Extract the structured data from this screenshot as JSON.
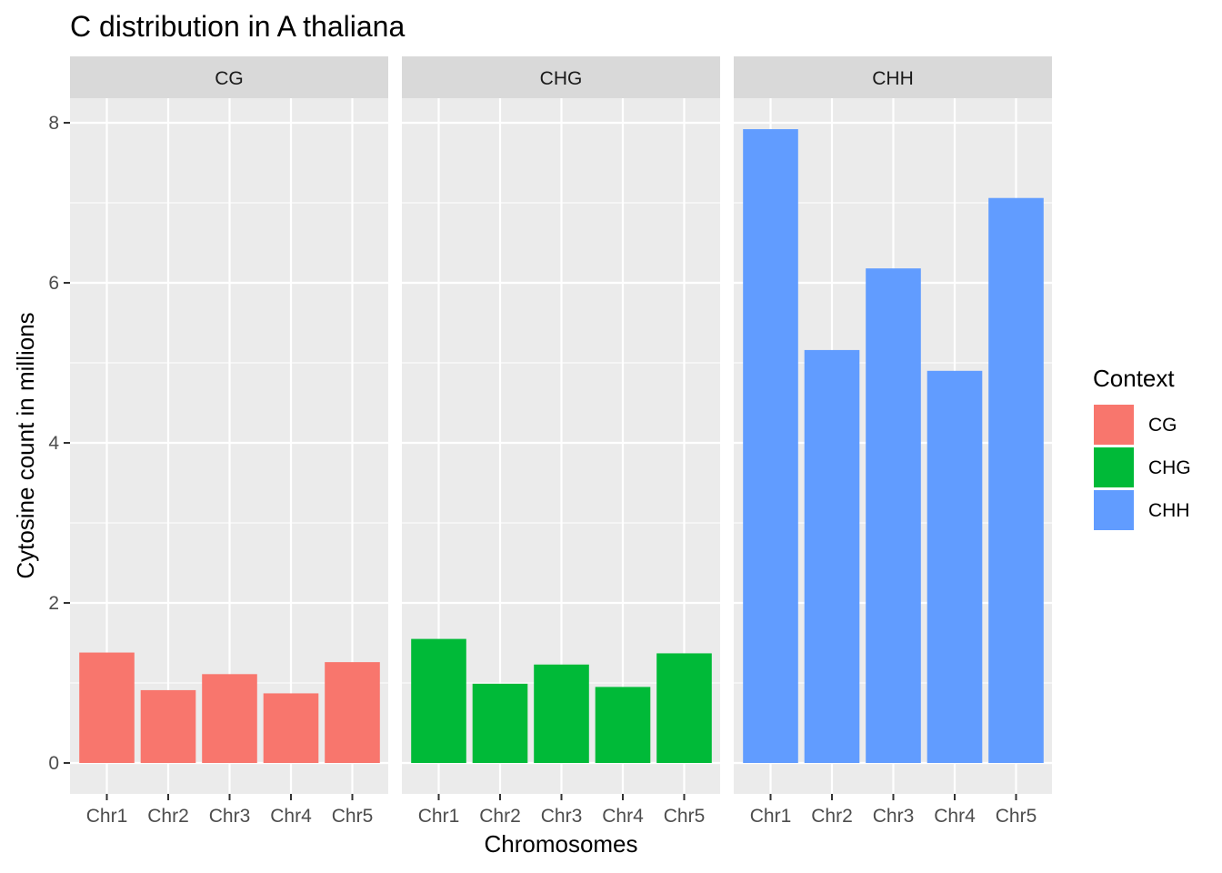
{
  "chart_data": {
    "type": "bar",
    "title": "C distribution in A thaliana",
    "xlabel": "Chromosomes",
    "ylabel": "Cytosine count in millions",
    "ylim": [
      0,
      8.6
    ],
    "yticks": [
      0,
      2,
      4,
      6,
      8
    ],
    "categories": [
      "Chr1",
      "Chr2",
      "Chr3",
      "Chr4",
      "Chr5"
    ],
    "grid": true,
    "legend": {
      "title": "Context",
      "position": "right",
      "entries": [
        {
          "label": "CG",
          "color": "#F8766D"
        },
        {
          "label": "CHG",
          "color": "#00BA38"
        },
        {
          "label": "CHH",
          "color": "#619CFF"
        }
      ]
    },
    "facets": [
      {
        "label": "CG",
        "color": "#F8766D",
        "values": [
          1.38,
          0.91,
          1.11,
          0.87,
          1.26
        ]
      },
      {
        "label": "CHG",
        "color": "#00BA38",
        "values": [
          1.55,
          0.99,
          1.23,
          0.95,
          1.37
        ]
      },
      {
        "label": "CHH",
        "color": "#619CFF",
        "values": [
          7.92,
          5.16,
          6.18,
          4.9,
          7.06
        ]
      }
    ]
  }
}
